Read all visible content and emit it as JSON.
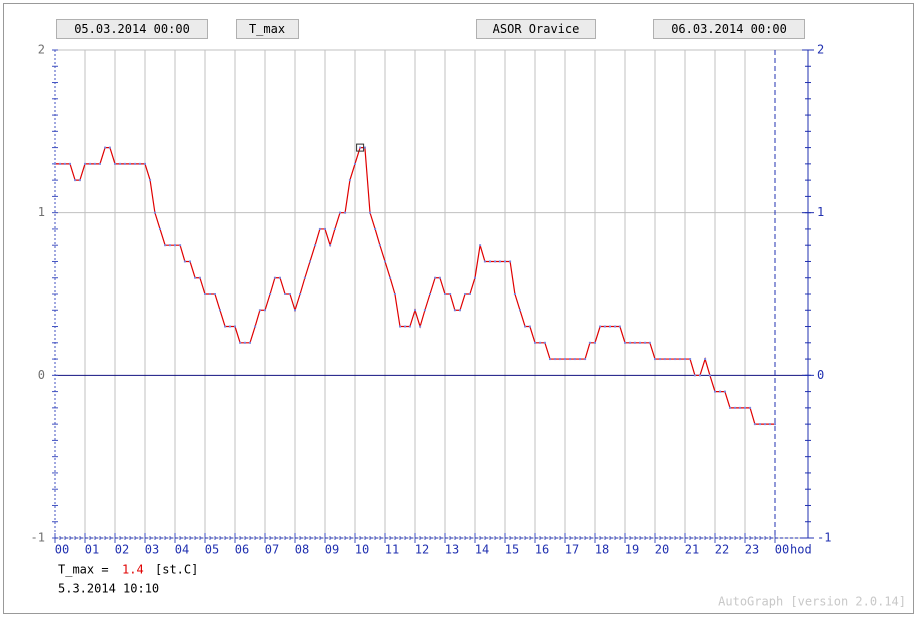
{
  "chart_data": {
    "type": "line",
    "title": "ASOR Oravice",
    "x_start_label": "05.03.2014 00:00",
    "x_end_label": "06.03.2014 00:00",
    "x_unit": "hod",
    "series": [
      {
        "name": "T_max",
        "color": "#e00000",
        "marker_color": "#7a86e0",
        "x": [
          0,
          0.17,
          0.33,
          0.5,
          0.67,
          0.83,
          1,
          1.17,
          1.33,
          1.5,
          1.67,
          1.83,
          2,
          2.17,
          2.33,
          2.5,
          2.67,
          2.83,
          3,
          3.17,
          3.33,
          3.5,
          3.67,
          3.83,
          4,
          4.17,
          4.33,
          4.5,
          4.67,
          4.83,
          5,
          5.17,
          5.33,
          5.5,
          5.67,
          5.83,
          6,
          6.17,
          6.33,
          6.5,
          6.67,
          6.83,
          7,
          7.17,
          7.33,
          7.5,
          7.67,
          7.83,
          8,
          8.17,
          8.33,
          8.5,
          8.67,
          8.83,
          9,
          9.17,
          9.33,
          9.5,
          9.67,
          9.83,
          10,
          10.17,
          10.33,
          10.5,
          10.67,
          10.83,
          11,
          11.17,
          11.33,
          11.5,
          11.67,
          11.83,
          12,
          12.17,
          12.33,
          12.5,
          12.67,
          12.83,
          13,
          13.17,
          13.33,
          13.5,
          13.67,
          13.83,
          14,
          14.17,
          14.33,
          14.5,
          14.67,
          14.83,
          15,
          15.17,
          15.33,
          15.5,
          15.67,
          15.83,
          16,
          16.17,
          16.33,
          16.5,
          16.67,
          16.83,
          17,
          17.17,
          17.33,
          17.5,
          17.67,
          17.83,
          18,
          18.17,
          18.33,
          18.5,
          18.67,
          18.83,
          19,
          19.17,
          19.33,
          19.5,
          19.67,
          19.83,
          20,
          20.17,
          20.33,
          20.5,
          20.67,
          20.83,
          21,
          21.17,
          21.33,
          21.5,
          21.67,
          21.83,
          22,
          22.17,
          22.33,
          22.5,
          22.67,
          22.83,
          23,
          23.17,
          23.33,
          23.5,
          23.67,
          23.83,
          24
        ],
        "values": [
          1.3,
          1.3,
          1.3,
          1.3,
          1.2,
          1.2,
          1.3,
          1.3,
          1.3,
          1.3,
          1.4,
          1.4,
          1.3,
          1.3,
          1.3,
          1.3,
          1.3,
          1.3,
          1.3,
          1.2,
          1.0,
          0.9,
          0.8,
          0.8,
          0.8,
          0.8,
          0.7,
          0.7,
          0.6,
          0.6,
          0.5,
          0.5,
          0.5,
          0.4,
          0.3,
          0.3,
          0.3,
          0.2,
          0.2,
          0.2,
          0.3,
          0.4,
          0.4,
          0.5,
          0.6,
          0.6,
          0.5,
          0.5,
          0.4,
          0.5,
          0.6,
          0.7,
          0.8,
          0.9,
          0.9,
          0.8,
          0.9,
          1.0,
          1.0,
          1.2,
          1.3,
          1.4,
          1.4,
          1.0,
          0.9,
          0.8,
          0.7,
          0.6,
          0.5,
          0.3,
          0.3,
          0.3,
          0.4,
          0.3,
          0.4,
          0.5,
          0.6,
          0.6,
          0.5,
          0.5,
          0.4,
          0.4,
          0.5,
          0.5,
          0.6,
          0.8,
          0.7,
          0.7,
          0.7,
          0.7,
          0.7,
          0.7,
          0.5,
          0.4,
          0.3,
          0.3,
          0.2,
          0.2,
          0.2,
          0.1,
          0.1,
          0.1,
          0.1,
          0.1,
          0.1,
          0.1,
          0.1,
          0.2,
          0.2,
          0.3,
          0.3,
          0.3,
          0.3,
          0.3,
          0.2,
          0.2,
          0.2,
          0.2,
          0.2,
          0.2,
          0.1,
          0.1,
          0.1,
          0.1,
          0.1,
          0.1,
          0.1,
          0.1,
          0,
          0,
          0.1,
          0,
          -0.1,
          -0.1,
          -0.1,
          -0.2,
          -0.2,
          -0.2,
          -0.2,
          -0.2,
          -0.3,
          -0.3,
          -0.3,
          -0.3,
          -0.3
        ]
      }
    ],
    "xlim": [
      0,
      24
    ],
    "xticks": [
      {
        "value": 0,
        "label": "00"
      },
      {
        "value": 1,
        "label": "01"
      },
      {
        "value": 2,
        "label": "02"
      },
      {
        "value": 3,
        "label": "03"
      },
      {
        "value": 4,
        "label": "04"
      },
      {
        "value": 5,
        "label": "05"
      },
      {
        "value": 6,
        "label": "06"
      },
      {
        "value": 7,
        "label": "07"
      },
      {
        "value": 8,
        "label": "08"
      },
      {
        "value": 9,
        "label": "09"
      },
      {
        "value": 10,
        "label": "10"
      },
      {
        "value": 11,
        "label": "11"
      },
      {
        "value": 12,
        "label": "12"
      },
      {
        "value": 13,
        "label": "13"
      },
      {
        "value": 14,
        "label": "14"
      },
      {
        "value": 15,
        "label": "15"
      },
      {
        "value": 16,
        "label": "16"
      },
      {
        "value": 17,
        "label": "17"
      },
      {
        "value": 18,
        "label": "18"
      },
      {
        "value": 19,
        "label": "19"
      },
      {
        "value": 20,
        "label": "20"
      },
      {
        "value": 21,
        "label": "21"
      },
      {
        "value": 22,
        "label": "22"
      },
      {
        "value": 23,
        "label": "23"
      },
      {
        "value": 24,
        "label": "00"
      }
    ],
    "ylim": [
      -1,
      2
    ],
    "yticks": [
      -1,
      0,
      1,
      2
    ],
    "y2lim": [
      -1,
      2
    ],
    "y2ticks": [
      -1,
      0,
      1,
      2
    ],
    "grid": true,
    "cursor": {
      "x": 10.17,
      "value": 1.4,
      "label": "T_max =",
      "unit": "[st.C]",
      "time": "5.3.2014 10:10"
    },
    "footer": "AutoGraph [version 2.0.14]"
  }
}
